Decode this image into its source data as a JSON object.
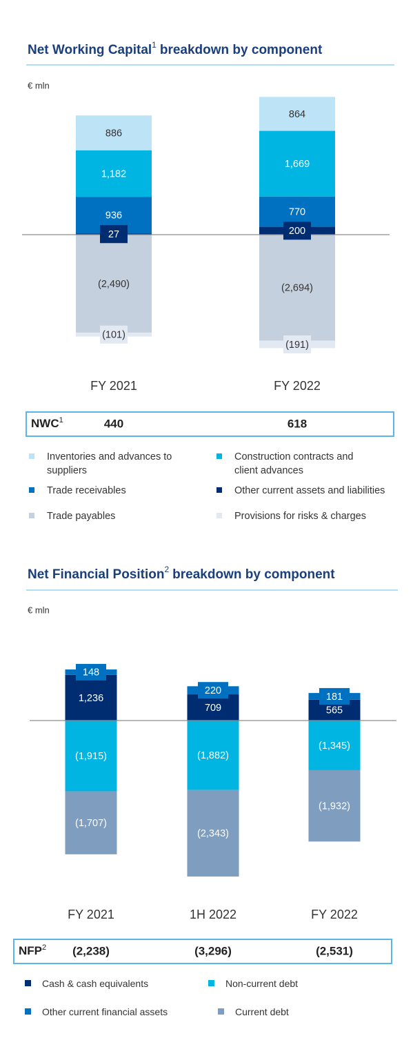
{
  "chart_data": [
    {
      "type": "bar",
      "stacked": true,
      "title": "Net Working Capital",
      "title_sup": "1",
      "title_rest": "breakdown by component",
      "unit": "€ mln",
      "categories": [
        "FY 2021",
        "FY 2022"
      ],
      "series": [
        {
          "name": "Other current assets and liabilities",
          "color": "#002d72",
          "values": [
            27,
            200
          ],
          "value_labels": [
            "27",
            "200"
          ]
        },
        {
          "name": "Trade receivables",
          "color": "#0070c0",
          "values": [
            936,
            770
          ],
          "value_labels": [
            "936",
            "770"
          ]
        },
        {
          "name": "Construction contracts and client advances",
          "color": "#00b5e2",
          "values": [
            1182,
            1669
          ],
          "value_labels": [
            "1,182",
            "1,669"
          ]
        },
        {
          "name": "Inventories and advances to suppliers",
          "color": "#bde3f7",
          "values": [
            886,
            864
          ],
          "value_labels": [
            "886",
            "864"
          ]
        },
        {
          "name": "Trade payables",
          "color": "#c5d0de",
          "values": [
            -2490,
            -2694
          ],
          "value_labels": [
            "(2,490)",
            "(2,694)"
          ]
        },
        {
          "name": "Provisions for risks & charges",
          "color": "#e3e9f2",
          "values": [
            -101,
            -191
          ],
          "value_labels": [
            "(101)",
            "(191)"
          ]
        }
      ],
      "total": {
        "label": "NWC",
        "label_sup": "1",
        "values": [
          440,
          618
        ]
      }
    },
    {
      "type": "bar",
      "stacked": true,
      "title": "Net Financial Position",
      "title_sup": "2",
      "title_rest": "breakdown by component",
      "unit": "€ mln",
      "categories": [
        "FY 2021",
        "1H 2022",
        "FY 2022"
      ],
      "series": [
        {
          "name": "Cash & cash equivalents",
          "color": "#002d72",
          "values": [
            1236,
            709,
            565
          ],
          "value_labels": [
            "1,236",
            "709",
            "565"
          ]
        },
        {
          "name": "Other current financial assets",
          "color": "#0070c0",
          "values": [
            148,
            220,
            181
          ],
          "value_labels": [
            "148",
            "220",
            "181"
          ]
        },
        {
          "name": "Non-current debt",
          "color": "#00b5e2",
          "values": [
            -1915,
            -1882,
            -1345
          ],
          "value_labels": [
            "(1,915)",
            "(1,882)",
            "(1,345)"
          ]
        },
        {
          "name": "Current debt",
          "color": "#7f9dbf",
          "values": [
            -1707,
            -2343,
            -1932
          ],
          "value_labels": [
            "(1,707)",
            "(2,343)",
            "(1,932)"
          ]
        }
      ],
      "total": {
        "label": "NFP",
        "label_sup": "2",
        "values": [
          -2238,
          -3296,
          -2531
        ],
        "value_labels": [
          "(2,238)",
          "(3,296)",
          "(2,531)"
        ]
      }
    }
  ]
}
